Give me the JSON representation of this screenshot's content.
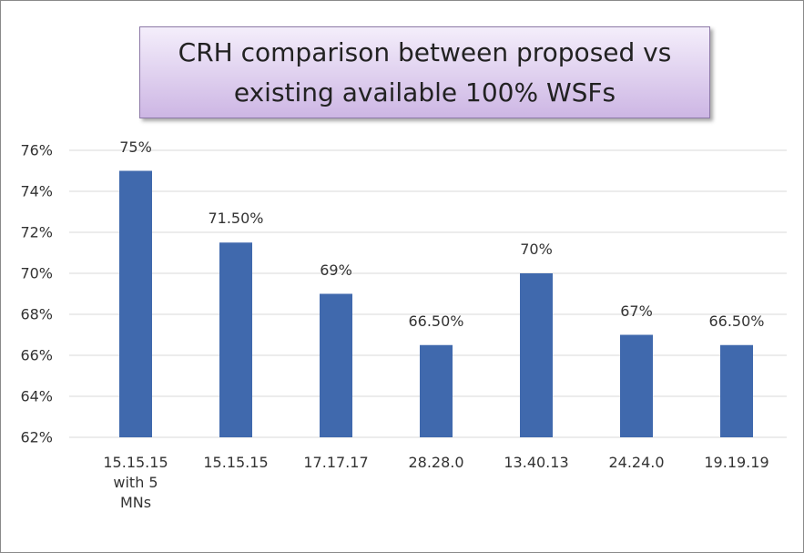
{
  "chart_data": {
    "type": "bar",
    "title": "CRH comparison between proposed vs existing available 100% WSFs",
    "categories": [
      "15.15.15 with 5 MNs",
      "15.15.15",
      "17.17.17",
      "28.28.0",
      "13.40.13",
      "24.24.0",
      "19.19.19"
    ],
    "values": [
      75,
      71.5,
      69,
      66.5,
      70,
      67,
      66.5
    ],
    "value_labels": [
      "75%",
      "71.50%",
      "69%",
      "66.50%",
      "70%",
      "67%",
      "66.50%"
    ],
    "color": "#4069ad",
    "ylim": [
      62,
      76
    ],
    "yticks": [
      {
        "value": 62,
        "label": "62%"
      },
      {
        "value": 64,
        "label": "64%"
      },
      {
        "value": 66,
        "label": "66%"
      },
      {
        "value": 68,
        "label": "68%"
      },
      {
        "value": 70,
        "label": "70%"
      },
      {
        "value": 72,
        "label": "72%"
      },
      {
        "value": 74,
        "label": "74%"
      },
      {
        "value": 76,
        "label": "76%"
      }
    ],
    "grid": true
  }
}
